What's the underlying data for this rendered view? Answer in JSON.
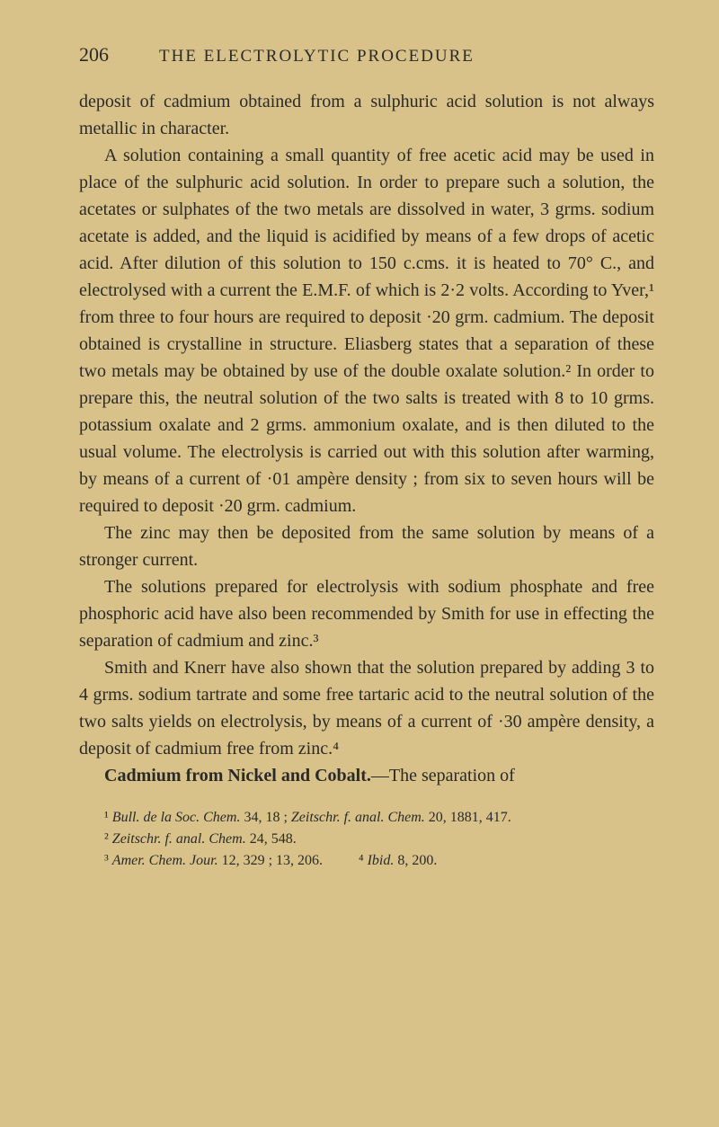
{
  "header": {
    "page_number": "206",
    "chapter_title": "THE ELECTROLYTIC PROCEDURE"
  },
  "paragraphs": {
    "p1": "deposit of cadmium obtained from a sulphuric acid solution is not always metallic in character.",
    "p2": "A solution containing a small quantity of free acetic acid may be used in place of the sulphuric acid solution. In order to prepare such a solution, the acetates or sulphates of the two metals are dissolved in water, 3 grms. sodium acetate is added, and the liquid is acidified by means of a few drops of acetic acid. After dilution of this solution to 150 c.cms. it is heated to 70° C., and electrolysed with a current the E.M.F. of which is 2·2 volts. According to Yver,¹ from three to four hours are required to deposit ·20 grm. cadmium. The deposit obtained is crystalline in structure. Eliasberg states that a separation of these two metals may be obtained by use of the double oxalate solution.² In order to prepare this, the neutral solution of the two salts is treated with 8 to 10 grms. potassium oxalate and 2 grms. ammonium oxalate, and is then diluted to the usual volume. The electrolysis is carried out with this solution after warming, by means of a current of ·01 ampère density ; from six to seven hours will be required to deposit ·20 grm. cadmium.",
    "p3": "The zinc may then be deposited from the same solution by means of a stronger current.",
    "p4": "The solutions prepared for electrolysis with sodium phosphate and free phosphoric acid have also been recommended by Smith for use in effecting the separation of cadmium and zinc.³",
    "p5": "Smith and Knerr have also shown that the solution prepared by adding 3 to 4 grms. sodium tartrate and some free tartaric acid to the neutral solution of the two salts yields on electrolysis, by means of a current of ·30 ampère density, a deposit of cadmium free from zinc.⁴",
    "p6_head": "Cadmium from Nickel and Cobalt.",
    "p6_tail": "—The separation of"
  },
  "footnotes": {
    "fn1_pre": "¹ ",
    "fn1_italic1": "Bull. de la Soc. Chem.",
    "fn1_mid": " 34, 18 ; ",
    "fn1_italic2": "Zeitschr. f. anal. Chem.",
    "fn1_post": " 20, 1881, 417.",
    "fn2_pre": "² ",
    "fn2_italic": "Zeitschr. f. anal. Chem.",
    "fn2_post": " 24, 548.",
    "fn3_pre": "³ ",
    "fn3_italic": "Amer. Chem. Jour.",
    "fn3_post": " 12, 329 ; 13, 206.",
    "fn4_pre": "⁴ ",
    "fn4_italic": "Ibid.",
    "fn4_post": " 8, 200."
  },
  "colors": {
    "background": "#d8c289",
    "text": "#2a2a28"
  },
  "typography": {
    "body_fontsize": 20,
    "header_fontsize": 19,
    "footnote_fontsize": 16,
    "line_height": 1.5,
    "font_family": "Georgia, Times New Roman, serif"
  }
}
